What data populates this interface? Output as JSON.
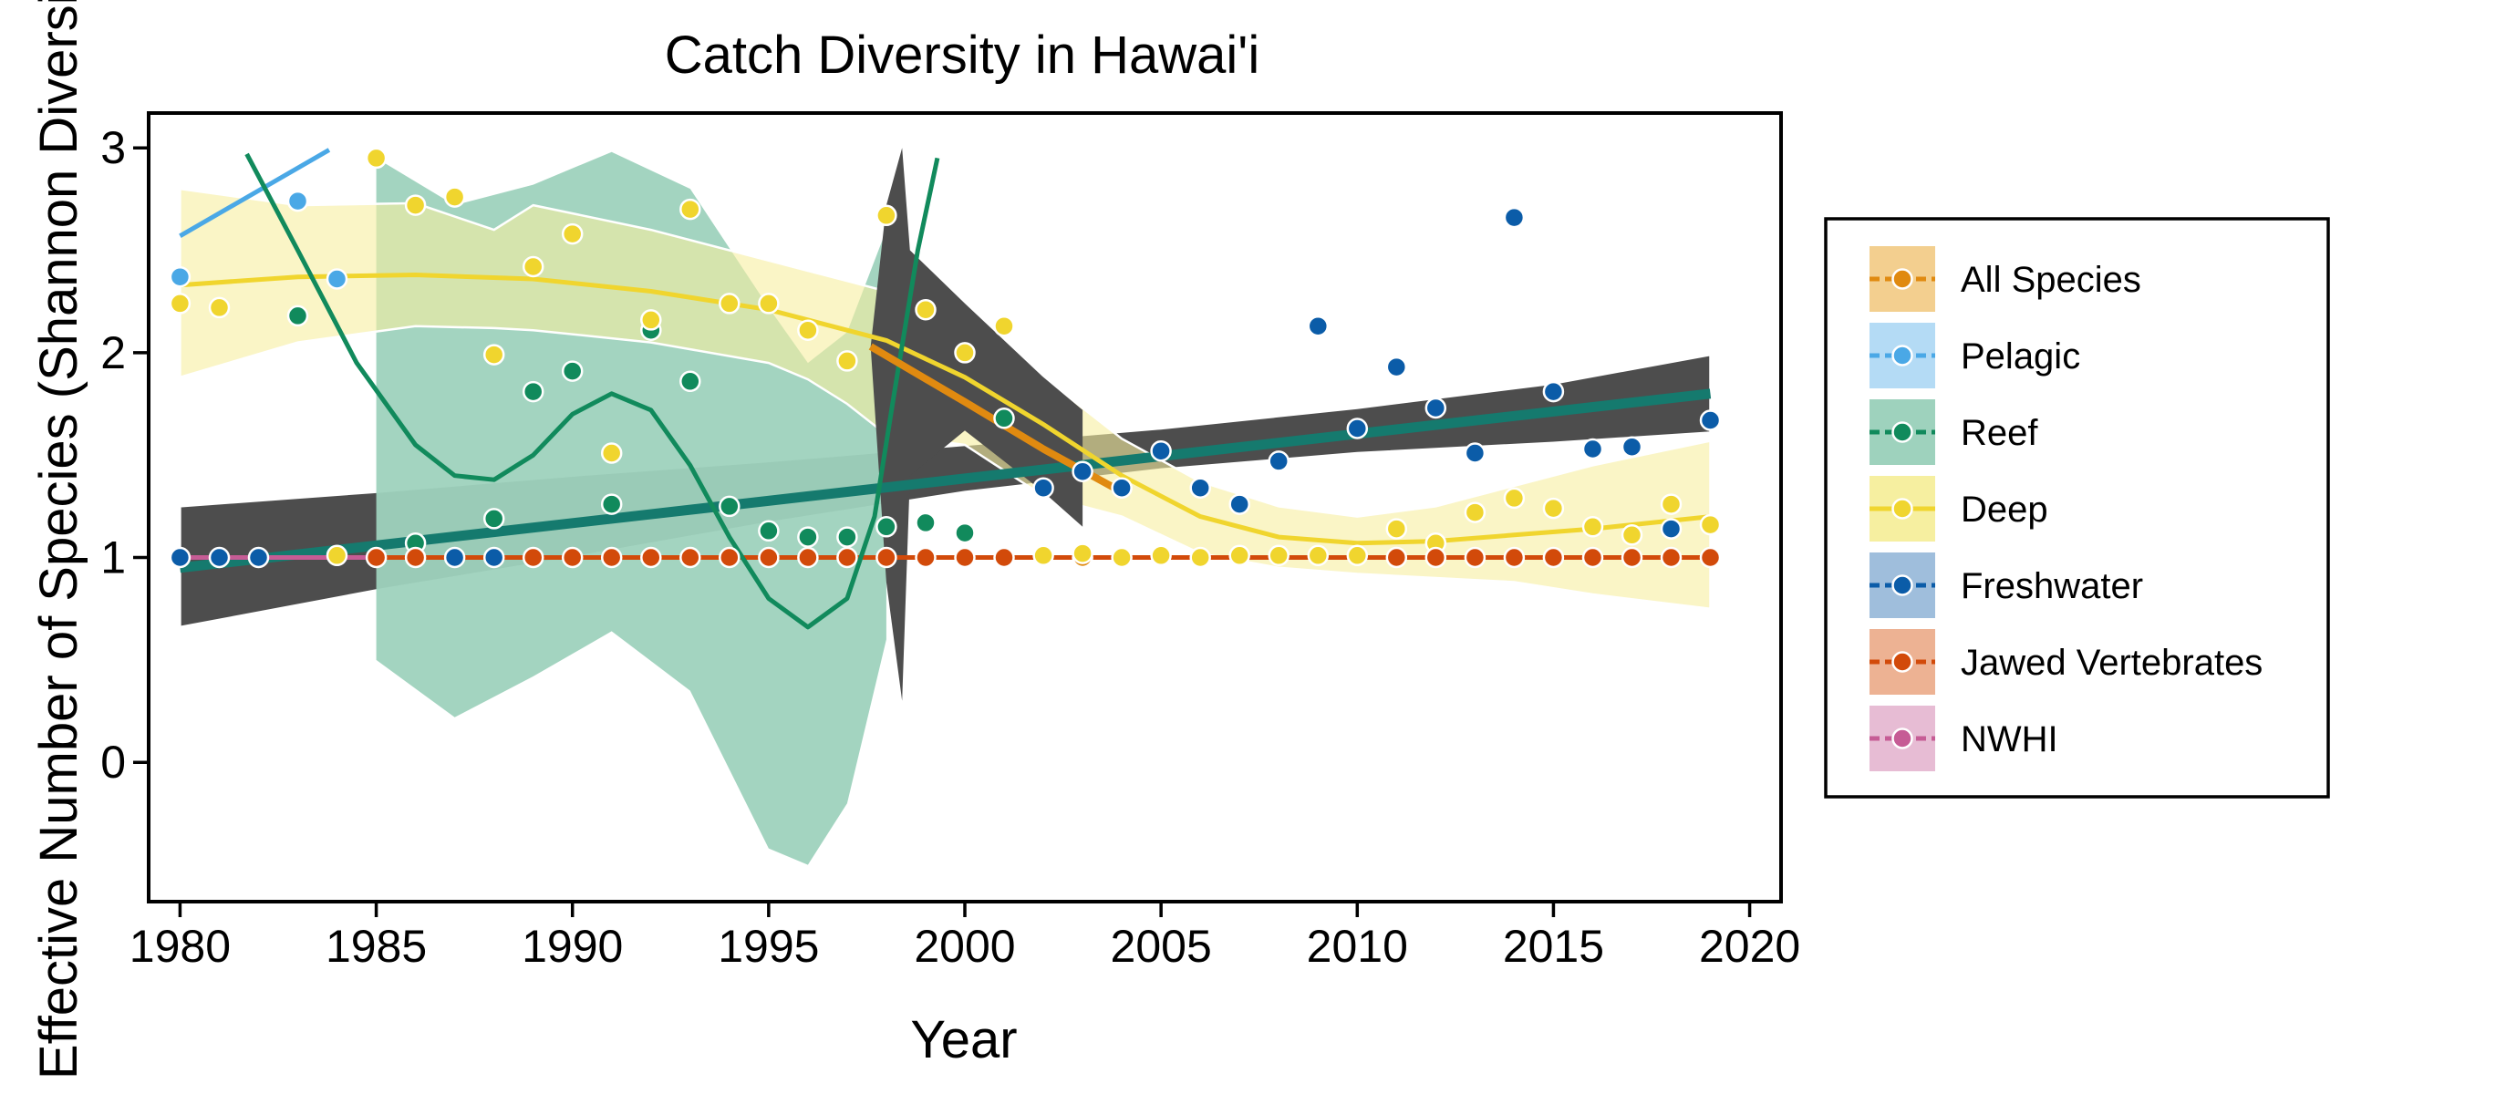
{
  "chart_data": {
    "type": "scatter",
    "title": "Catch Diversity in Hawai'i",
    "xlabel": "Year",
    "ylabel": "Effective Number of Species (Shannon Diversity)",
    "xlim": [
      1979.2,
      2020.8
    ],
    "ylim": [
      -0.68,
      3.17
    ],
    "x_ticks": [
      1980,
      1985,
      1990,
      1995,
      2000,
      2005,
      2010,
      2015,
      2020
    ],
    "y_ticks": [
      0,
      1,
      2,
      3
    ],
    "grid": false,
    "legend_position": "right",
    "series": [
      {
        "name": "All Species",
        "color": "#E08A10",
        "fill": "#F3CF8F",
        "points": [
          [
            2003,
            1.0
          ]
        ],
        "trend": [
          [
            1997.6,
            2.03
          ],
          [
            2000,
            1.76
          ],
          [
            2002,
            1.53
          ],
          [
            2004,
            1.32
          ]
        ],
        "band": []
      },
      {
        "name": "Pelagic",
        "color": "#4AA8E6",
        "fill": "#B4DBF5",
        "points": [
          [
            1980,
            2.37
          ],
          [
            1983,
            2.74
          ],
          [
            1984,
            2.36
          ]
        ],
        "trend": [
          [
            1980,
            2.57
          ],
          [
            1983.8,
            2.99
          ]
        ],
        "band": []
      },
      {
        "name": "Reef",
        "color": "#118A5C",
        "fill": "#9ED2BD",
        "points": [
          [
            1983,
            2.18
          ],
          [
            1986,
            1.07
          ],
          [
            1988,
            1.19
          ],
          [
            1989,
            1.81
          ],
          [
            1990,
            1.91
          ],
          [
            1991,
            1.26
          ],
          [
            1992,
            2.11
          ],
          [
            1993,
            1.86
          ],
          [
            1994,
            1.25
          ],
          [
            1995,
            1.13
          ],
          [
            1996,
            1.1
          ],
          [
            1997,
            1.1
          ],
          [
            1998,
            1.15
          ],
          [
            1999,
            1.17
          ],
          [
            2000,
            1.12
          ],
          [
            2001,
            1.68
          ]
        ],
        "trend": [
          [
            1981.7,
            2.97
          ],
          [
            1983,
            2.5
          ],
          [
            1984.5,
            1.95
          ],
          [
            1986,
            1.55
          ],
          [
            1987,
            1.4
          ],
          [
            1988,
            1.38
          ],
          [
            1989,
            1.5
          ],
          [
            1990,
            1.7
          ],
          [
            1991,
            1.8
          ],
          [
            1992,
            1.72
          ],
          [
            1993,
            1.45
          ],
          [
            1994,
            1.1
          ],
          [
            1995,
            0.8
          ],
          [
            1996,
            0.66
          ],
          [
            1997,
            0.8
          ],
          [
            1997.7,
            1.2
          ],
          [
            1998.2,
            1.8
          ],
          [
            1998.8,
            2.5
          ],
          [
            1999.3,
            2.95
          ]
        ],
        "band": [
          [
            1985,
            2.95,
            0.5
          ],
          [
            1987,
            2.72,
            0.22
          ],
          [
            1989,
            2.82,
            0.42
          ],
          [
            1991,
            2.98,
            0.64
          ],
          [
            1993,
            2.8,
            0.35
          ],
          [
            1995,
            2.22,
            -0.42
          ],
          [
            1996,
            1.95,
            -0.5
          ],
          [
            1997,
            2.1,
            -0.2
          ],
          [
            1998,
            2.6,
            0.6
          ]
        ]
      },
      {
        "name": "Deep",
        "color": "#F0D52E",
        "fill": "#F6EFA0",
        "points": [
          [
            1980,
            2.24
          ],
          [
            1981,
            2.22
          ],
          [
            1984,
            1.01
          ],
          [
            1985,
            2.95
          ],
          [
            1986,
            2.72
          ],
          [
            1987,
            2.76
          ],
          [
            1988,
            1.99
          ],
          [
            1989,
            2.42
          ],
          [
            1990,
            2.58
          ],
          [
            1991,
            1.51
          ],
          [
            1992,
            2.16
          ],
          [
            1993,
            2.7
          ],
          [
            1994,
            2.24
          ],
          [
            1995,
            2.24
          ],
          [
            1996,
            2.11
          ],
          [
            1997,
            1.96
          ],
          [
            1998,
            2.67
          ],
          [
            1999,
            2.21
          ],
          [
            2000,
            2.0
          ],
          [
            2001,
            2.13
          ],
          [
            2002,
            1.01
          ],
          [
            2003,
            1.02
          ],
          [
            2004,
            1.0
          ],
          [
            2005,
            1.01
          ],
          [
            2006,
            1.0
          ],
          [
            2007,
            1.01
          ],
          [
            2008,
            1.01
          ],
          [
            2009,
            1.01
          ],
          [
            2010,
            1.01
          ],
          [
            2011,
            1.14
          ],
          [
            2012,
            1.07
          ],
          [
            2013,
            1.22
          ],
          [
            2014,
            1.29
          ],
          [
            2015,
            1.24
          ],
          [
            2016,
            1.15
          ],
          [
            2017,
            1.11
          ],
          [
            2018,
            1.26
          ],
          [
            2019,
            1.16
          ]
        ],
        "trend": [
          [
            1980,
            2.33
          ],
          [
            1983,
            2.37
          ],
          [
            1986,
            2.38
          ],
          [
            1989,
            2.36
          ],
          [
            1992,
            2.3
          ],
          [
            1995,
            2.21
          ],
          [
            1998,
            2.06
          ],
          [
            2000,
            1.88
          ],
          [
            2002,
            1.65
          ],
          [
            2004,
            1.4
          ],
          [
            2006,
            1.2
          ],
          [
            2008,
            1.1
          ],
          [
            2010,
            1.07
          ],
          [
            2012,
            1.08
          ],
          [
            2014,
            1.11
          ],
          [
            2016,
            1.14
          ],
          [
            2018,
            1.18
          ],
          [
            2019,
            1.2
          ]
        ],
        "band": [
          [
            1980,
            2.8,
            1.88
          ],
          [
            1983,
            2.72,
            2.05
          ],
          [
            1986,
            2.73,
            2.13
          ],
          [
            1988,
            2.6,
            2.12
          ],
          [
            1989,
            2.72,
            2.11
          ],
          [
            1992,
            2.6,
            2.05
          ],
          [
            1995,
            2.45,
            1.95
          ],
          [
            1996,
            2.4,
            1.87
          ],
          [
            1997,
            2.35,
            1.75
          ],
          [
            1998,
            2.3,
            1.6
          ],
          [
            2000,
            2.1,
            1.55
          ],
          [
            2002,
            1.88,
            1.3
          ],
          [
            2004,
            1.58,
            1.2
          ],
          [
            2006,
            1.37,
            1.02
          ],
          [
            2008,
            1.25,
            0.95
          ],
          [
            2010,
            1.2,
            0.92
          ],
          [
            2012,
            1.25,
            0.9
          ],
          [
            2014,
            1.35,
            0.88
          ],
          [
            2016,
            1.45,
            0.82
          ],
          [
            2019,
            1.57,
            0.75
          ]
        ]
      },
      {
        "name": "Freshwater",
        "color": "#0B5CA8",
        "fill": "#9FBEDC",
        "points": [
          [
            1980,
            1.0
          ],
          [
            1981,
            1.0
          ],
          [
            1982,
            1.0
          ],
          [
            1987,
            1.0
          ],
          [
            1988,
            1.0
          ],
          [
            2002,
            1.34
          ],
          [
            2003,
            1.42
          ],
          [
            2004,
            1.34
          ],
          [
            2005,
            1.52
          ],
          [
            2006,
            1.34
          ],
          [
            2007,
            1.26
          ],
          [
            2008,
            1.47
          ],
          [
            2009,
            2.13
          ],
          [
            2010,
            1.63
          ],
          [
            2011,
            1.93
          ],
          [
            2012,
            1.73
          ],
          [
            2013,
            1.51
          ],
          [
            2014,
            2.66
          ],
          [
            2015,
            1.81
          ],
          [
            2016,
            1.53
          ],
          [
            2017,
            1.54
          ],
          [
            2018,
            1.14
          ],
          [
            2019,
            1.67
          ]
        ],
        "trend": [],
        "band": []
      },
      {
        "name": "Jawed Vertebrates",
        "color": "#D24A0A",
        "fill": "#EDB293",
        "points": [
          [
            1985,
            1.0
          ],
          [
            1986,
            1.0
          ],
          [
            1989,
            1.0
          ],
          [
            1990,
            1.0
          ],
          [
            1991,
            1.0
          ],
          [
            1992,
            1.0
          ],
          [
            1993,
            1.0
          ],
          [
            1994,
            1.0
          ],
          [
            1995,
            1.0
          ],
          [
            1996,
            1.0
          ],
          [
            1997,
            1.0
          ],
          [
            1998,
            1.0
          ],
          [
            1999,
            1.0
          ],
          [
            2000,
            1.0
          ],
          [
            2001,
            1.0
          ],
          [
            2011,
            1.0
          ],
          [
            2012,
            1.0
          ],
          [
            2013,
            1.0
          ],
          [
            2014,
            1.0
          ],
          [
            2015,
            1.0
          ],
          [
            2016,
            1.0
          ],
          [
            2017,
            1.0
          ],
          [
            2018,
            1.0
          ],
          [
            2019,
            1.0
          ]
        ],
        "trend": [
          [
            1985,
            1.0
          ],
          [
            2019,
            1.0
          ]
        ],
        "band": []
      },
      {
        "name": "NWHI",
        "color": "#C65C95",
        "fill": "#E7BCD4",
        "points": [],
        "trend": [
          [
            1980,
            1.0
          ],
          [
            1998,
            1.0
          ]
        ],
        "band": []
      }
    ],
    "overall_fit": {
      "color": "#157A6E",
      "fill": "#4D4D4D",
      "trend": [
        [
          1980,
          0.95
        ],
        [
          2019,
          1.8
        ]
      ],
      "band": [
        [
          1980,
          1.25,
          0.66
        ],
        [
          1985,
          1.32,
          0.84
        ],
        [
          1990,
          1.4,
          1.0
        ],
        [
          1995,
          1.47,
          1.17
        ],
        [
          2000,
          1.55,
          1.32
        ],
        [
          2005,
          1.63,
          1.43
        ],
        [
          2010,
          1.73,
          1.51
        ],
        [
          2015,
          1.85,
          1.56
        ],
        [
          2019,
          1.99,
          1.61
        ]
      ]
    },
    "break_band": {
      "fill": "#4D4D4D",
      "band": [
        [
          1997.6,
          2.03,
          2.03
        ],
        [
          1998,
          2.72,
          0.88
        ],
        [
          1998.4,
          3.0,
          0.3
        ],
        [
          1998.6,
          2.5,
          1.4
        ],
        [
          2000,
          2.24,
          1.62
        ],
        [
          2002,
          1.88,
          1.32
        ],
        [
          2003,
          1.72,
          1.15
        ]
      ]
    }
  }
}
